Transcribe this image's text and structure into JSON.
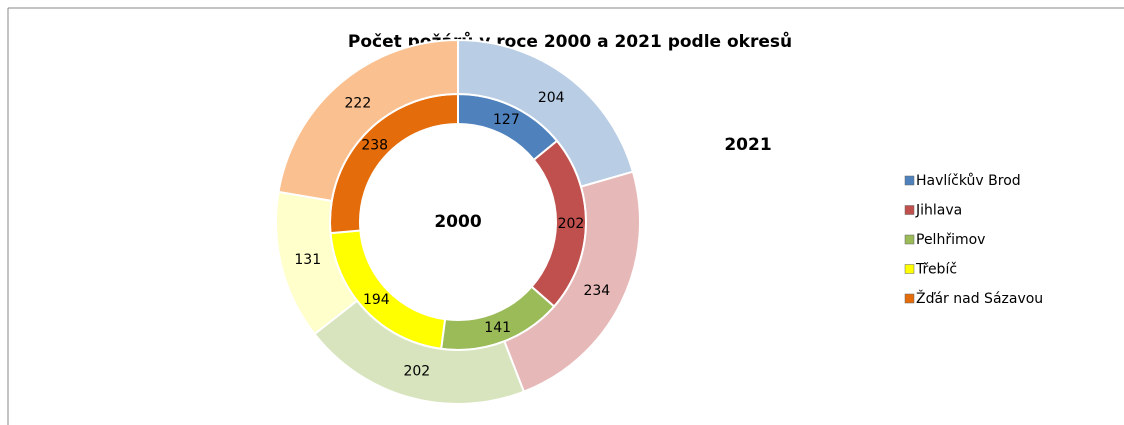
{
  "chart_data": {
    "type": "donut",
    "title": "Počet požárů v roce 2000 a 2021 podle okresů",
    "categories": [
      "Havlíčkův Brod",
      "Jihlava",
      "Pelhřimov",
      "Třebíč",
      "Žďár nad Sázavou"
    ],
    "series": [
      {
        "name": "2000",
        "values": [
          127,
          202,
          141,
          194,
          238
        ],
        "colors": [
          "#4f81bd",
          "#c0504d",
          "#9bbb59",
          "#ffff00",
          "#e46c0a"
        ]
      },
      {
        "name": "2021",
        "values": [
          204,
          234,
          202,
          131,
          222
        ],
        "colors": [
          "#b9cde5",
          "#e6b9b8",
          "#d7e4bd",
          "#ffffcc",
          "#fac090"
        ]
      }
    ],
    "legend": "right"
  }
}
